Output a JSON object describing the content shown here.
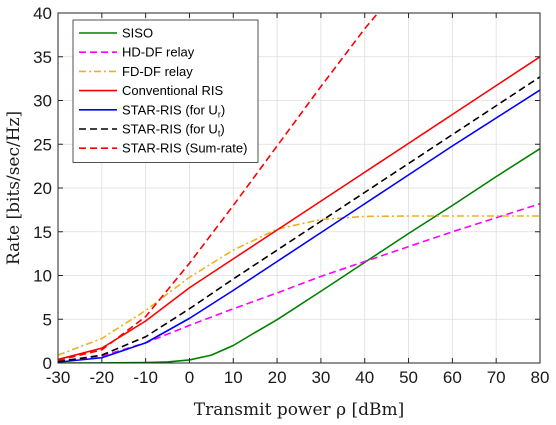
{
  "chart_data": {
    "type": "line",
    "xlabel": "Transmit power ρ [dBm]",
    "ylabel": "Rate [bits/sec/Hz]",
    "xlim": [
      -30,
      80
    ],
    "ylim": [
      0,
      40
    ],
    "xticks": [
      -30,
      -20,
      -10,
      0,
      10,
      20,
      30,
      40,
      50,
      60,
      70,
      80
    ],
    "yticks": [
      0,
      5,
      10,
      15,
      20,
      25,
      30,
      35,
      40
    ],
    "grid": true,
    "legend_position": "top-left",
    "series": [
      {
        "name": "SISO",
        "color": "#008000",
        "dash": "solid",
        "x": [
          -30,
          -20,
          -10,
          -5,
          0,
          5,
          10,
          15,
          20,
          30,
          40,
          50,
          60,
          70,
          80
        ],
        "y": [
          0.0,
          0.01,
          0.05,
          0.12,
          0.35,
          0.9,
          2.0,
          3.5,
          4.95,
          8.2,
          11.5,
          14.8,
          18.0,
          21.3,
          24.5
        ]
      },
      {
        "name": "HD-DF relay",
        "color": "#ff00ff",
        "dash": "dashed",
        "x": [
          -30,
          -20,
          -10,
          0,
          10,
          20,
          30,
          40,
          50,
          60,
          70,
          80
        ],
        "y": [
          0.2,
          0.8,
          2.3,
          4.3,
          6.2,
          8.0,
          9.9,
          11.6,
          13.3,
          15.0,
          16.6,
          18.2
        ]
      },
      {
        "name": "FD-DF relay",
        "color": "#edb120",
        "dash": "dashdot",
        "x": [
          -30,
          -20,
          -10,
          0,
          10,
          20,
          30,
          40,
          50,
          60,
          70,
          80
        ],
        "y": [
          0.9,
          2.8,
          6.0,
          9.8,
          12.9,
          15.3,
          16.4,
          16.75,
          16.8,
          16.8,
          16.8,
          16.8
        ]
      },
      {
        "name": "Conventional RIS",
        "color": "#ff0000",
        "dash": "solid",
        "x": [
          -30,
          -20,
          -10,
          0,
          10,
          20,
          30,
          40,
          50,
          60,
          70,
          80
        ],
        "y": [
          0.4,
          1.7,
          4.8,
          8.6,
          11.9,
          15.2,
          18.5,
          21.8,
          25.1,
          28.4,
          31.7,
          35.0
        ]
      },
      {
        "name": "STAR-RIS (for U_r)",
        "color": "#0000ff",
        "dash": "solid",
        "x": [
          -30,
          -20,
          -10,
          0,
          10,
          20,
          30,
          40,
          50,
          60,
          70,
          80
        ],
        "y": [
          0.1,
          0.6,
          2.3,
          5.1,
          8.3,
          11.6,
          14.9,
          18.2,
          21.5,
          24.8,
          28.0,
          31.2
        ]
      },
      {
        "name": "STAR-RIS (for U_t)",
        "color": "#000000",
        "dash": "dashed",
        "x": [
          -30,
          -20,
          -10,
          0,
          10,
          20,
          30,
          40,
          50,
          60,
          70,
          80
        ],
        "y": [
          0.15,
          0.9,
          3.0,
          6.2,
          9.6,
          12.9,
          16.2,
          19.5,
          22.8,
          26.1,
          29.4,
          32.7
        ]
      },
      {
        "name": "STAR-RIS (Sum-rate)",
        "color": "#ff0000",
        "dash": "dashed",
        "x": [
          -30,
          -20,
          -10,
          0,
          10,
          20,
          30,
          40,
          43
        ],
        "y": [
          0.3,
          1.5,
          5.3,
          11.4,
          18.0,
          24.8,
          31.6,
          38.2,
          40.0
        ]
      }
    ]
  }
}
